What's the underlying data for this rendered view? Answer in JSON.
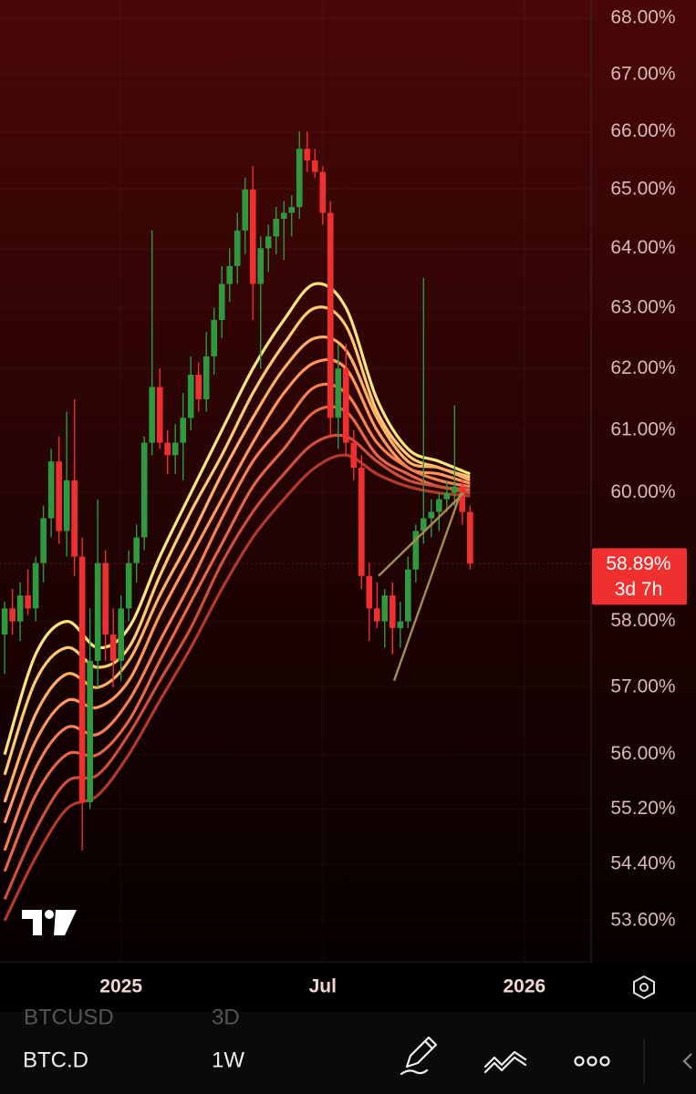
{
  "chart_data": {
    "type": "candlestick",
    "log_scale": true,
    "grid": true,
    "up_color": "#2f9a3d",
    "down_color": "#f0302e",
    "open": [
      57.8,
      58.2,
      58.0,
      58.4,
      58.2,
      58.9,
      59.6,
      60.5,
      59.4,
      60.2,
      59.0,
      55.3,
      57.4,
      58.9,
      57.8,
      57.4,
      58.2,
      58.9,
      59.3,
      60.8,
      61.7,
      60.8,
      60.6,
      60.8,
      61.2,
      61.9,
      61.5,
      62.2,
      62.8,
      63.4,
      63.7,
      64.3,
      65.0,
      63.4,
      64.0,
      64.2,
      64.5,
      64.6,
      64.7,
      65.7,
      65.5,
      65.3,
      64.6,
      61.2,
      62.0,
      60.8,
      60.4,
      58.7,
      58.2,
      58.0,
      58.4,
      57.9,
      58.0,
      58.8,
      59.4,
      59.6,
      59.7,
      59.9,
      60.0,
      60.1,
      59.7
    ],
    "high": [
      58.3,
      58.5,
      58.6,
      58.8,
      59.0,
      59.8,
      60.7,
      60.9,
      61.3,
      61.5,
      59.3,
      58.2,
      59.9,
      59.1,
      58.2,
      58.4,
      59.1,
      59.5,
      60.9,
      64.3,
      62.0,
      61.0,
      61.1,
      61.6,
      62.2,
      62.1,
      62.6,
      63.0,
      63.7,
      64.0,
      64.6,
      65.2,
      65.4,
      64.2,
      64.4,
      64.7,
      64.8,
      64.9,
      66.0,
      66.0,
      65.7,
      65.4,
      64.8,
      62.4,
      62.4,
      61.0,
      60.6,
      58.9,
      58.6,
      58.5,
      58.6,
      58.3,
      59.0,
      59.5,
      63.5,
      59.9,
      60.0,
      60.2,
      61.4,
      60.2,
      59.8
    ],
    "low": [
      57.2,
      57.8,
      57.7,
      58.1,
      58.0,
      58.6,
      59.3,
      59.2,
      59.0,
      58.7,
      54.6,
      55.2,
      57.0,
      57.4,
      57.0,
      57.1,
      58.0,
      58.6,
      59.1,
      60.6,
      60.7,
      60.3,
      60.3,
      60.2,
      61.0,
      61.3,
      61.3,
      61.9,
      62.5,
      63.1,
      63.4,
      63.9,
      62.8,
      62.0,
      63.6,
      63.9,
      63.8,
      64.2,
      64.5,
      65.3,
      65.2,
      64.4,
      60.9,
      60.7,
      60.6,
      60.2,
      58.5,
      57.7,
      57.9,
      57.6,
      57.5,
      57.6,
      57.9,
      58.6,
      59.2,
      59.3,
      59.4,
      59.7,
      59.8,
      59.5,
      58.8
    ],
    "close": [
      58.2,
      58.0,
      58.4,
      58.2,
      58.9,
      59.6,
      60.5,
      59.4,
      60.2,
      59.0,
      55.3,
      57.4,
      58.9,
      57.8,
      57.4,
      58.2,
      58.9,
      59.3,
      60.8,
      61.7,
      60.8,
      60.6,
      60.8,
      61.2,
      61.9,
      61.5,
      62.2,
      62.8,
      63.4,
      63.7,
      64.3,
      65.0,
      63.4,
      64.0,
      64.2,
      64.5,
      64.6,
      64.7,
      65.7,
      65.5,
      65.3,
      64.6,
      61.2,
      62.0,
      60.8,
      60.4,
      58.7,
      58.2,
      58.0,
      58.4,
      57.9,
      58.0,
      58.8,
      59.4,
      59.6,
      59.7,
      59.9,
      60.0,
      60.1,
      59.7,
      58.89
    ],
    "ribbon_x": [
      0,
      4,
      8,
      12,
      16,
      20,
      24,
      28,
      32,
      36,
      40,
      44,
      48,
      52,
      56,
      60
    ],
    "series": [
      {
        "color": "#ffe47c",
        "values": [
          56.0,
          57.5,
          58.0,
          57.6,
          57.9,
          59.0,
          60.0,
          61.0,
          62.0,
          62.8,
          63.4,
          63.0,
          61.5,
          60.7,
          60.5,
          60.3
        ]
      },
      {
        "color": "#ffca70",
        "values": [
          55.7,
          57.1,
          57.6,
          57.3,
          57.6,
          58.7,
          59.7,
          60.6,
          61.6,
          62.4,
          63.0,
          62.7,
          61.3,
          60.6,
          60.4,
          60.25
        ]
      },
      {
        "color": "#ffb066",
        "values": [
          55.3,
          56.6,
          57.2,
          57.0,
          57.4,
          58.4,
          59.3,
          60.3,
          61.2,
          62.0,
          62.5,
          62.3,
          61.2,
          60.5,
          60.4,
          60.2
        ]
      },
      {
        "color": "#ff975d",
        "values": [
          55.0,
          56.2,
          56.8,
          56.7,
          57.1,
          58.1,
          59.0,
          59.9,
          60.8,
          61.6,
          62.1,
          62.0,
          61.0,
          60.4,
          60.3,
          60.15
        ]
      },
      {
        "color": "#f57f55",
        "values": [
          54.6,
          55.8,
          56.4,
          56.3,
          56.8,
          57.7,
          58.6,
          59.6,
          60.5,
          61.1,
          61.7,
          61.6,
          60.8,
          60.4,
          60.2,
          60.1
        ]
      },
      {
        "color": "#e4674a",
        "values": [
          54.3,
          55.4,
          56.0,
          56.0,
          56.5,
          57.4,
          58.3,
          59.2,
          60.1,
          60.7,
          61.3,
          61.3,
          60.6,
          60.3,
          60.1,
          60.05
        ]
      },
      {
        "color": "#cc503c",
        "values": [
          53.9,
          54.9,
          55.6,
          55.7,
          56.3,
          57.1,
          57.9,
          58.9,
          59.7,
          60.3,
          60.8,
          60.9,
          60.5,
          60.2,
          60.1,
          60.0
        ]
      },
      {
        "color": "#b23a2d",
        "values": [
          53.6,
          54.5,
          55.2,
          55.4,
          56.0,
          56.8,
          57.6,
          58.5,
          59.3,
          59.9,
          60.4,
          60.6,
          60.3,
          60.1,
          60.0,
          59.95
        ]
      }
    ],
    "trendlines": [
      {
        "color": "#a48d52",
        "x": [
          48.2,
          59.2
        ],
        "y": [
          58.7,
          60.0
        ]
      },
      {
        "color": "#a48d52",
        "x": [
          50.2,
          58.8
        ],
        "y": [
          57.1,
          60.0
        ]
      }
    ],
    "xlim": [
      -0.6,
      75.6
    ],
    "xticks": [
      {
        "value": 15,
        "label": "2025"
      },
      {
        "value": 41,
        "label": "Jul"
      },
      {
        "value": 67,
        "label": "2026"
      }
    ],
    "ylim": [
      53.02,
      68.33
    ],
    "yticks": [
      {
        "value": 68,
        "label": "68.00%"
      },
      {
        "value": 67,
        "label": "67.00%"
      },
      {
        "value": 66,
        "label": "66.00%"
      },
      {
        "value": 65,
        "label": "65.00%"
      },
      {
        "value": 64,
        "label": "64.00%"
      },
      {
        "value": 63,
        "label": "63.00%"
      },
      {
        "value": 62,
        "label": "62.00%"
      },
      {
        "value": 61,
        "label": "61.00%"
      },
      {
        "value": 60,
        "label": "60.00%"
      },
      {
        "value": 58,
        "label": "58.00%"
      },
      {
        "value": 57,
        "label": "57.00%"
      },
      {
        "value": 56,
        "label": "56.00%"
      },
      {
        "value": 55.2,
        "label": "55.20%"
      },
      {
        "value": 54.4,
        "label": "54.40%"
      },
      {
        "value": 53.6,
        "label": "53.60%"
      }
    ],
    "last_price": {
      "value": 58.89,
      "label": "58.89%"
    },
    "countdown": "3d 7h"
  },
  "toolbar": {
    "ghost_symbol": "BTCUSD",
    "ghost_interval": "3D",
    "symbol": "BTC.D",
    "interval": "1W"
  }
}
